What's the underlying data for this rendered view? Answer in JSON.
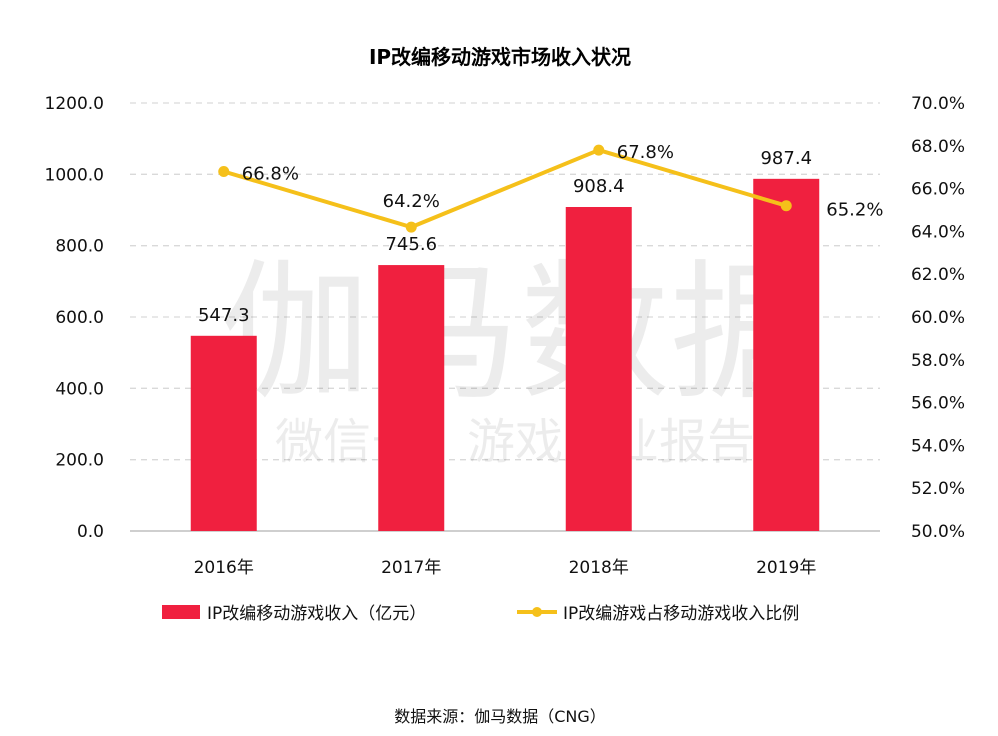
{
  "chart_data": {
    "type": "bar",
    "title": "IP改编移动游戏市场收入状况",
    "categories": [
      "2016年",
      "2017年",
      "2018年",
      "2019年"
    ],
    "series": [
      {
        "name": "IP改编移动游戏收入（亿元）",
        "type": "bar",
        "axis": "left",
        "values": [
          547.3,
          745.6,
          908.4,
          987.4
        ],
        "labels": [
          "547.3",
          "745.6",
          "908.4",
          "987.4"
        ],
        "color": "#f0203f"
      },
      {
        "name": "IP改编游戏占移动游戏收入比例",
        "type": "line",
        "axis": "right",
        "values": [
          66.8,
          64.2,
          67.8,
          65.2
        ],
        "labels": [
          "66.8%",
          "64.2%",
          "67.8%",
          "65.2%"
        ],
        "color": "#f5c01a"
      }
    ],
    "y_left": {
      "min": 0,
      "max": 1200,
      "step": 200,
      "ticks": [
        "0.0",
        "200.0",
        "400.0",
        "600.0",
        "800.0",
        "1000.0",
        "1200.0"
      ]
    },
    "y_right": {
      "min": 50,
      "max": 70,
      "step": 2,
      "ticks": [
        "50.0%",
        "52.0%",
        "54.0%",
        "56.0%",
        "58.0%",
        "60.0%",
        "62.0%",
        "64.0%",
        "66.0%",
        "68.0%",
        "70.0%"
      ]
    },
    "grid": true,
    "legend_position": "bottom"
  },
  "watermark": {
    "line1": "伽马数据",
    "line2": "微信号：游戏产业报告"
  },
  "source": "数据来源：伽马数据（CNG）"
}
